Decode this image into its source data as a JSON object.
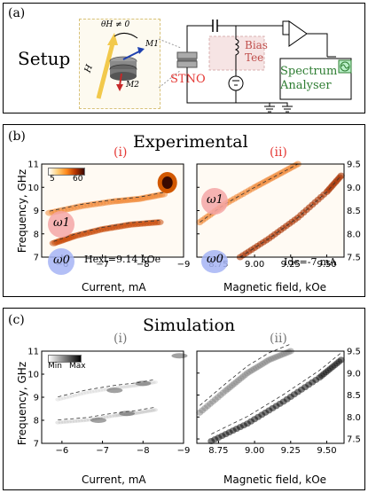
{
  "panel_a": {
    "label": "(a)",
    "setup_label": "Setup",
    "theta_label": "θH ≠ 0",
    "h_label": "H",
    "m1_label": "M1",
    "m2_label": "M2",
    "stno_label": "STNO",
    "bias_tee_label": "Bias Tee",
    "spectrum_label": "Spectrum Analyser",
    "colors": {
      "stno": "#e53935",
      "bias": "#c0504d",
      "spectrum": "#2e7d32",
      "arrow": "#f2c94c"
    }
  },
  "panel_b": {
    "label": "(b)",
    "title": "Experimental",
    "sub_i": "(i)",
    "sub_ii": "(ii)",
    "colorbar_ticks": [
      "5",
      "60"
    ],
    "omega1": "ω1",
    "omega0": "ω0",
    "annot_i": "Hext=9.14 kOe",
    "annot_ii": "Idc=-7 mA",
    "ylabel": "Frequency, GHz",
    "xlabel_i": "Current, mA",
    "xlabel_ii": "Magnetic field, kOe",
    "colors": {
      "sub": "#e53935",
      "bubble_w1": "#f4a6a6",
      "bubble_w0": "#a6b4f4"
    }
  },
  "panel_c": {
    "label": "(c)",
    "title": "Simulation",
    "sub_i": "(i)",
    "sub_ii": "(ii)",
    "colorbar_min": "Min",
    "colorbar_max": "Max",
    "ylabel": "Frequency, GHz",
    "xlabel_i": "Current, mA",
    "xlabel_ii": "Magnetic field, kOe"
  },
  "chart_data": [
    {
      "type": "heatmap",
      "panel": "b(i)",
      "xlabel": "Current, mA",
      "ylabel": "Frequency, GHz",
      "xlim": [
        -5.5,
        -9
      ],
      "ylim": [
        7,
        11
      ],
      "xticks": [
        -6,
        -7,
        -8,
        -9
      ],
      "yticks": [
        7,
        8,
        9,
        10,
        11
      ],
      "series": [
        {
          "name": "ω1",
          "x": [
            -5.7,
            -6.5,
            -7.3,
            -7.9,
            -8.5
          ],
          "y": [
            8.9,
            9.2,
            9.4,
            9.5,
            9.7
          ]
        },
        {
          "name": "ω0",
          "x": [
            -5.8,
            -6.3,
            -7.0,
            -7.7,
            -8.4
          ],
          "y": [
            7.6,
            7.9,
            8.2,
            8.4,
            8.5
          ]
        }
      ],
      "hotspot": {
        "x": -8.6,
        "y": 10.2
      }
    },
    {
      "type": "heatmap",
      "panel": "b(ii)",
      "xlabel": "Magnetic field, kOe",
      "ylabel": "Frequency, GHz",
      "xlim": [
        8.6,
        9.62
      ],
      "ylim": [
        7.5,
        9.5
      ],
      "xticks": [
        8.75,
        9.0,
        9.25,
        9.5
      ],
      "xtick_labels": [
        "8.75",
        "9.00",
        "9.25",
        "9.50"
      ],
      "yticks": [
        7.5,
        8.0,
        8.5,
        9.0,
        9.5
      ],
      "series": [
        {
          "name": "ω1",
          "x": [
            8.62,
            8.8,
            9.0,
            9.15,
            9.3
          ],
          "y": [
            8.25,
            8.65,
            9.0,
            9.25,
            9.5
          ]
        },
        {
          "name": "ω0",
          "x": [
            8.9,
            9.1,
            9.3,
            9.5,
            9.6
          ],
          "y": [
            7.5,
            7.9,
            8.35,
            8.9,
            9.25
          ]
        }
      ]
    },
    {
      "type": "heatmap",
      "panel": "c(i)",
      "xlabel": "Current, mA",
      "ylabel": "Frequency, GHz",
      "xlim": [
        -5.5,
        -9
      ],
      "ylim": [
        7,
        11
      ],
      "xticks": [
        -6,
        -7,
        -8,
        -9
      ],
      "yticks": [
        7,
        8,
        9,
        10,
        11
      ],
      "series": [
        {
          "name": "upper",
          "x": [
            -5.9,
            -6.6,
            -7.3,
            -7.8,
            -8.3
          ],
          "y": [
            8.9,
            9.2,
            9.4,
            9.5,
            9.65
          ]
        },
        {
          "name": "lower",
          "x": [
            -5.9,
            -6.6,
            -7.3,
            -7.8,
            -8.3
          ],
          "y": [
            7.9,
            8.0,
            8.2,
            8.3,
            8.45
          ]
        }
      ],
      "blobs": [
        {
          "x": -7.3,
          "y": 9.3
        },
        {
          "x": -8.0,
          "y": 9.6
        },
        {
          "x": -6.9,
          "y": 8.0
        },
        {
          "x": -7.6,
          "y": 8.3
        },
        {
          "x": -8.9,
          "y": 10.8
        }
      ]
    },
    {
      "type": "heatmap",
      "panel": "c(ii)",
      "xlabel": "Magnetic field, kOe",
      "ylabel": "Frequency, GHz",
      "xlim": [
        8.6,
        9.62
      ],
      "ylim": [
        7.4,
        9.5
      ],
      "xticks": [
        8.75,
        9.0,
        9.25,
        9.5
      ],
      "xtick_labels": [
        "8.75",
        "9.00",
        "9.25",
        "9.50"
      ],
      "yticks": [
        7.5,
        8.0,
        8.5,
        9.0,
        9.5
      ],
      "series": [
        {
          "name": "upper",
          "x": [
            8.62,
            8.8,
            8.95,
            9.1,
            9.25
          ],
          "y": [
            8.1,
            8.6,
            9.0,
            9.3,
            9.5
          ]
        },
        {
          "name": "lower",
          "x": [
            8.7,
            8.95,
            9.2,
            9.45,
            9.6
          ],
          "y": [
            7.45,
            7.85,
            8.35,
            8.9,
            9.3
          ]
        }
      ]
    }
  ]
}
